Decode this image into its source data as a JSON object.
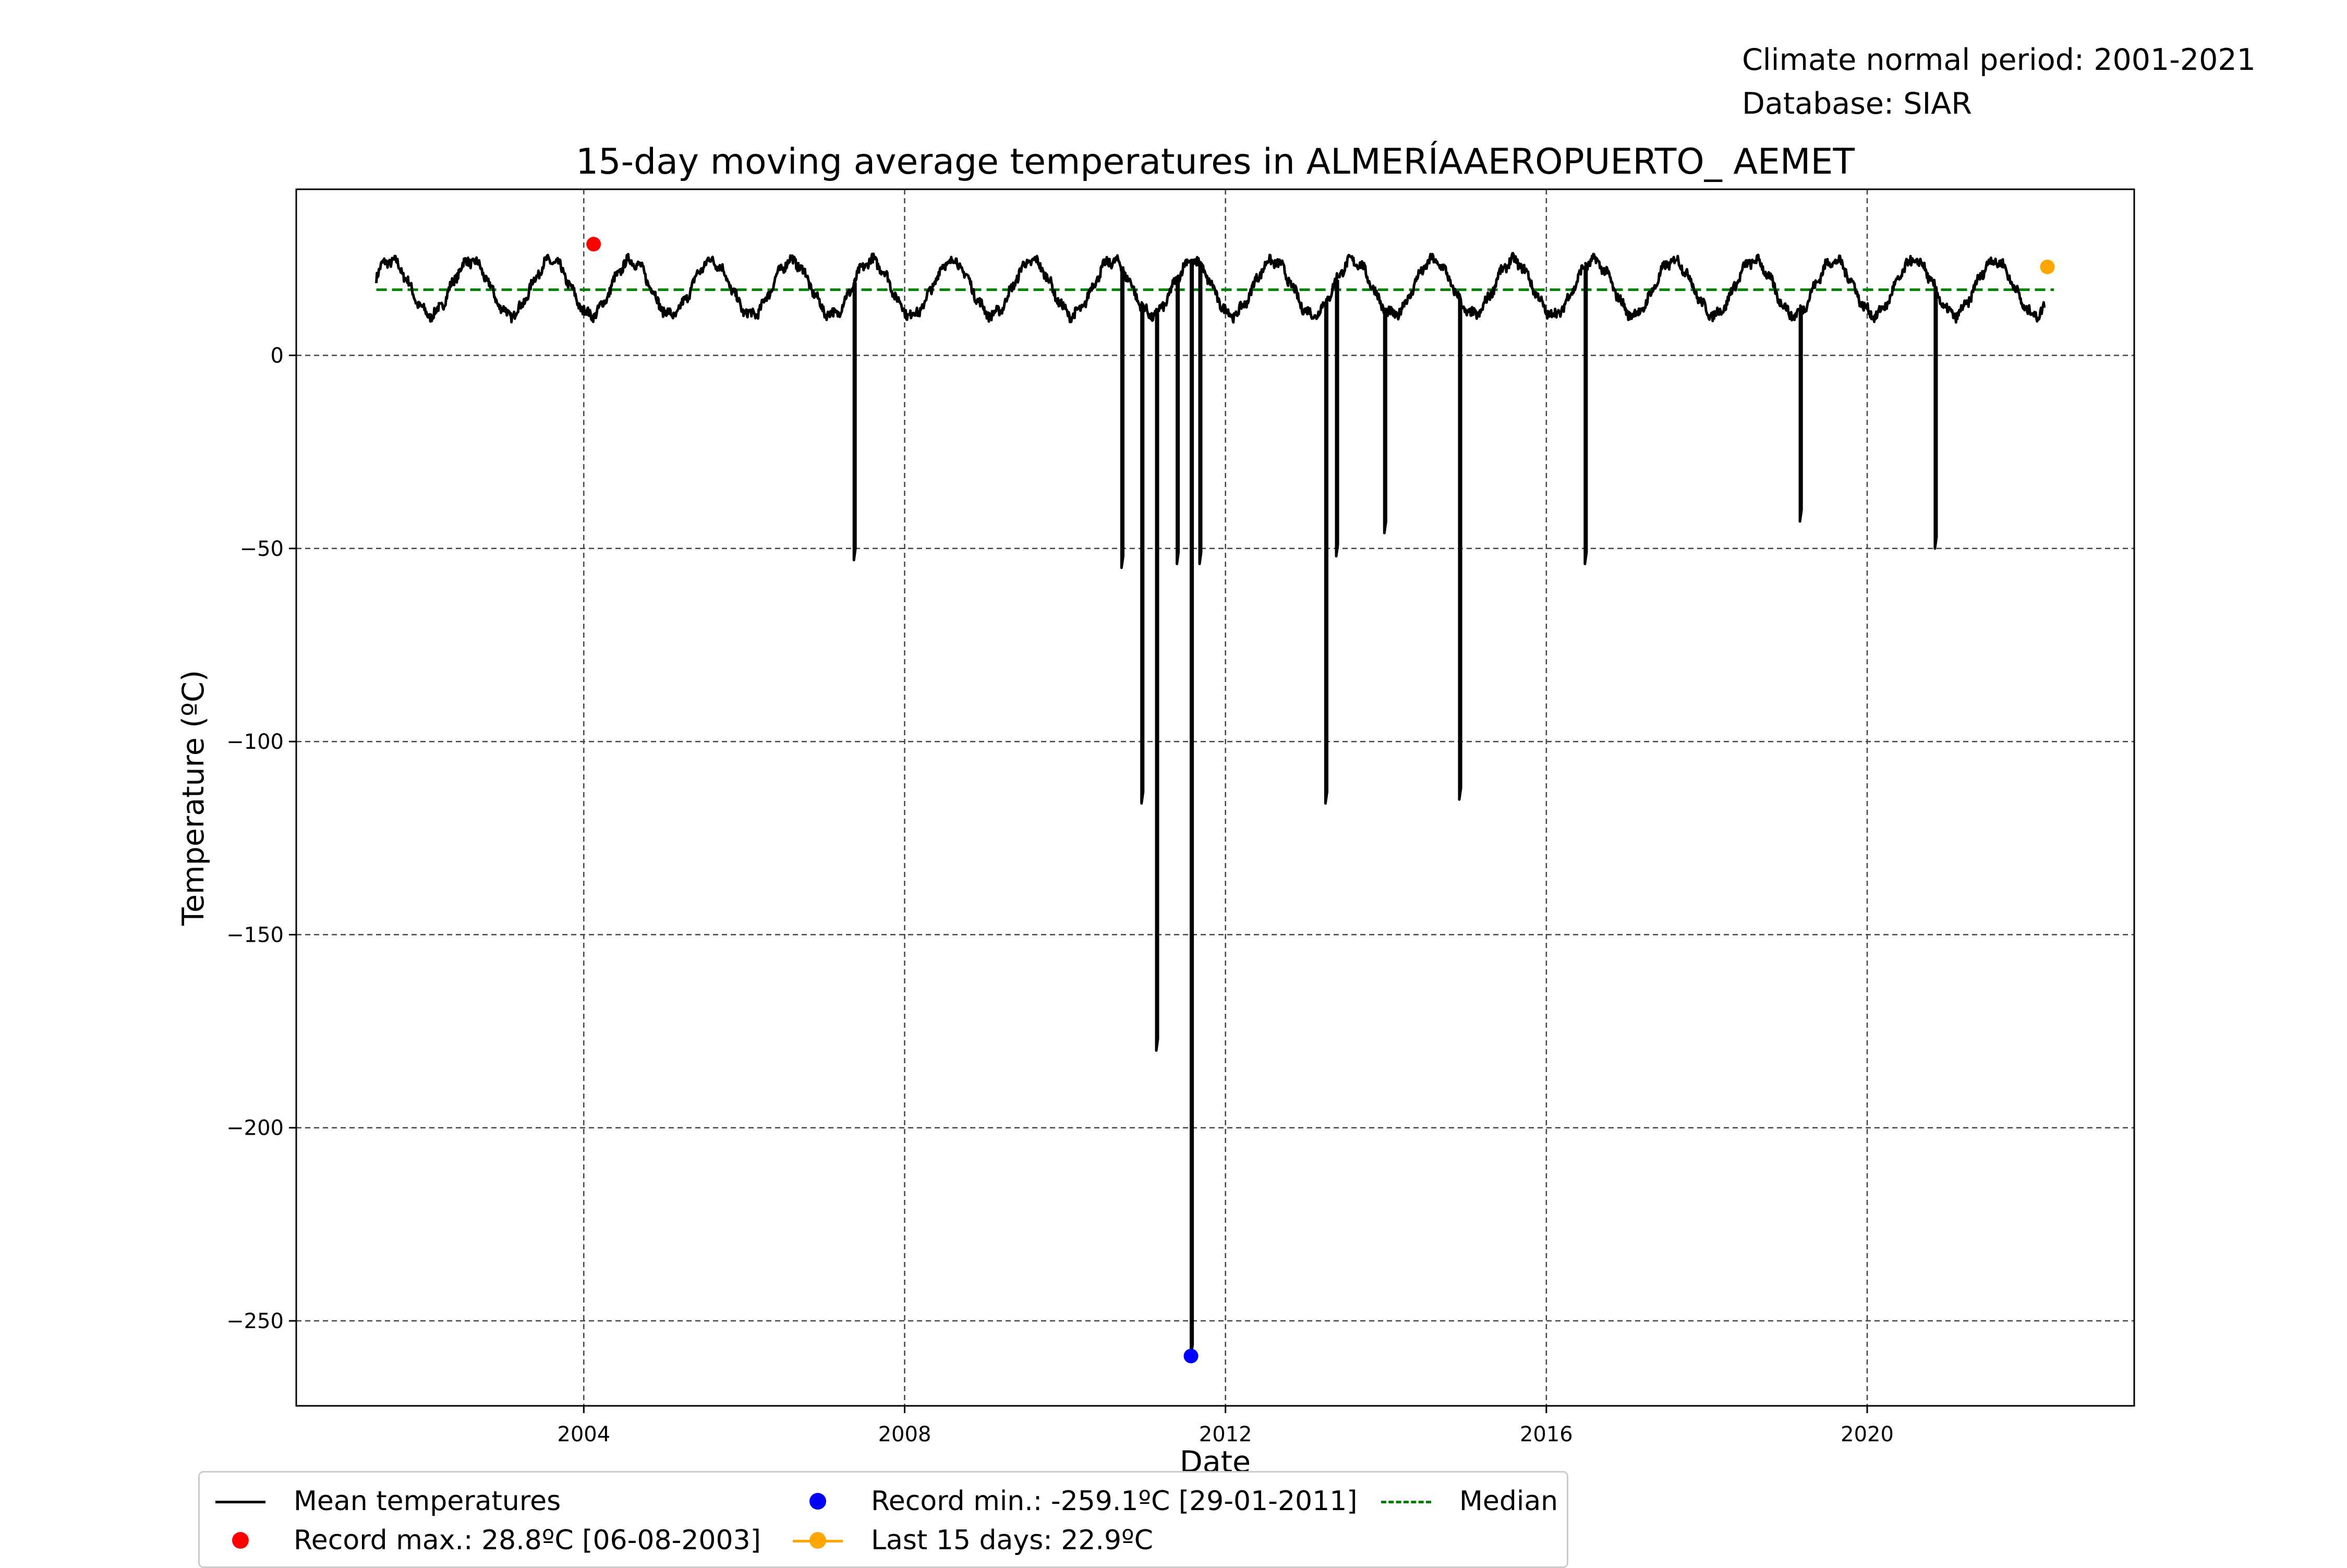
{
  "header": {
    "climate_period": "Climate normal period: 2001-2021",
    "database": "Database: SIAR"
  },
  "chart_data": {
    "type": "line",
    "title": "15-day moving average temperatures in ALMERÍAAEROPUERTO_ AEMET",
    "xlabel": "Date",
    "ylabel": "Temperature (ºC)",
    "xlim": [
      "2000-06-01",
      "2023-05-01"
    ],
    "ylim": [
      -272,
      43
    ],
    "x_ticks": [
      "2004",
      "2008",
      "2012",
      "2016",
      "2020"
    ],
    "y_ticks": [
      0,
      -50,
      -100,
      -150,
      -200,
      -250
    ],
    "y_tick_labels": [
      "0",
      "−50",
      "−100",
      "−150",
      "−200",
      "−250"
    ],
    "grid": true,
    "legend_position": "below",
    "series": [
      {
        "name": "Mean temperatures",
        "color": "#000000",
        "seasonal": {
          "start": "2001-06-01",
          "end": "2022-03-20",
          "mean": 17.5,
          "amplitude": 7,
          "peak_day_of_year": 215
        },
        "drops": [
          {
            "date": "2007-05-15",
            "value": -53
          },
          {
            "date": "2010-09-15",
            "value": -55
          },
          {
            "date": "2010-12-15",
            "value": -116
          },
          {
            "date": "2011-02-20",
            "value": -180
          },
          {
            "date": "2011-05-25",
            "value": -54
          },
          {
            "date": "2011-07-28",
            "value": -259.1
          },
          {
            "date": "2011-09-05",
            "value": -54
          },
          {
            "date": "2013-04-01",
            "value": -116
          },
          {
            "date": "2013-05-20",
            "value": -52
          },
          {
            "date": "2013-12-25",
            "value": -46
          },
          {
            "date": "2014-12-01",
            "value": -115
          },
          {
            "date": "2016-06-25",
            "value": -54
          },
          {
            "date": "2019-03-01",
            "value": -43
          },
          {
            "date": "2020-11-05",
            "value": -50
          }
        ]
      },
      {
        "name": "Median",
        "style": "dashed",
        "color": "#008000",
        "x": [
          "2001-06-01",
          "2022-05-01"
        ],
        "y": [
          17,
          17
        ]
      }
    ],
    "markers": [
      {
        "name": "Record max.: 28.8ºC [06-08-2003]",
        "date": "2004-02-15",
        "value": 28.8,
        "color": "#ff0000"
      },
      {
        "name": "Record min.: -259.1ºC [29-01-2011]",
        "date": "2011-07-28",
        "value": -259.1,
        "color": "#0000ff"
      },
      {
        "name": "Last 15 days: 22.9ºC",
        "date": "2022-04-01",
        "value": 22.9,
        "color": "#ffa500"
      }
    ]
  },
  "legend": {
    "mean": "Mean temperatures",
    "record_max": "Record max.: 28.8ºC [06-08-2003]",
    "record_min": "Record min.: -259.1ºC [29-01-2011]",
    "last_days": "Last 15 days: 22.9ºC",
    "median": "Median"
  }
}
